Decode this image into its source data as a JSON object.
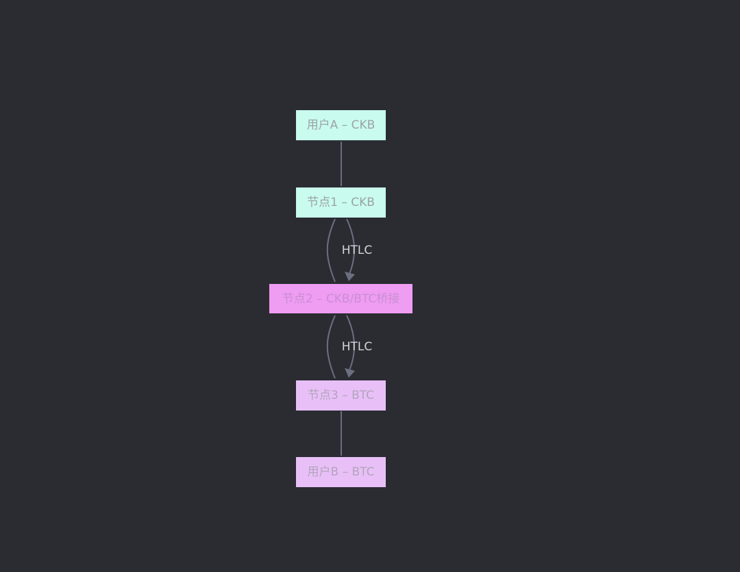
{
  "nodes": [
    {
      "label": "用户A  –  CKB",
      "color": "#c9fbee"
    },
    {
      "label": "节点1  –  CKB",
      "color": "#c9fbee"
    },
    {
      "label": "节点2  –  CKB/BTC桥接",
      "color": "#ef9cf3"
    },
    {
      "label": "节点3  –  BTC",
      "color": "#e8c0f7"
    },
    {
      "label": "用户B  –  BTC",
      "color": "#e8c0f7"
    }
  ],
  "edges": [
    {
      "from": "用户A",
      "to": "节点1",
      "label": ""
    },
    {
      "from": "节点1",
      "to": "节点2",
      "label": "HTLC"
    },
    {
      "from": "节点2",
      "to": "节点3",
      "label": "HTLC"
    },
    {
      "from": "节点3",
      "to": "用户B",
      "label": ""
    }
  ],
  "colors": {
    "background": "#2a2c31",
    "edge": "#6b6f80"
  }
}
